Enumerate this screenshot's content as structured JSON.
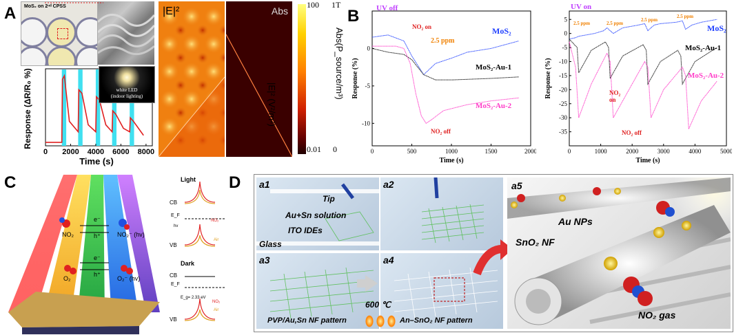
{
  "panel_labels": {
    "a": "A",
    "b": "B",
    "c": "C",
    "d": "D"
  },
  "panelA": {
    "photo_caption": "MoS₂ on 2ⁿᵈ CPSS",
    "led_label_1": "white LED",
    "led_label_2": "(indoor lighting)",
    "field_label": "|E|²",
    "abs_label": "Abs",
    "colorbar_top_left": "100",
    "colorbar_bottom_left": "0.01",
    "colorbar_top_right": "1T",
    "colorbar_bottom_right": "0",
    "colorbar_axis_left": "|E|² (V²/m²)",
    "colorbar_axis_right": "Abs(P_source/m³)",
    "colors": {
      "trace": "#e02020",
      "led_band": "#40e0f0",
      "abs_bg": "#3a0000"
    }
  },
  "panelB": {
    "left_title": "UV off",
    "right_title": "UV on",
    "no2_on": "NO₂ on",
    "no2_off": "NO₂ off",
    "ppm": "2.5 ppm",
    "series_mos2": "MoS₂",
    "series_au1": "MoS₂-Au-1",
    "series_au2": "MoS₂-Au-2",
    "colors": {
      "mos2": "#2040ff",
      "au1": "#111111",
      "au2": "#ff3cc8",
      "title": "#c040ff",
      "ppm": "#f08000",
      "no2": "#e02020"
    }
  },
  "panelC": {
    "e_minus": "e⁻",
    "h_plus": "h⁺",
    "no2": "NO₂",
    "no2_minus_hv": "NO₂⁻ (hv)",
    "o2": "O₂",
    "o2_minus_hv": "O₂⁻ (hv)",
    "light": "Light",
    "dark": "Dark",
    "cb": "CB",
    "vb": "VB",
    "ef": "E_F",
    "hv": "hv",
    "no2_curve": "NO₂",
    "air_curve": "Air",
    "eg": "E_g= 2.33 eV"
  },
  "panelD": {
    "a1": "a1",
    "a2": "a2",
    "a3": "a3",
    "a4": "a4",
    "a5": "a5",
    "tip": "Tip",
    "solution": "Au+Sn solution",
    "ito": "ITO IDEs",
    "glass": "Glass",
    "temp": "600 ℃",
    "pattern1": "PVP/Au,Sn NF pattern",
    "pattern2": "An–SnO₂ NF pattern",
    "au_nps": "Au NPs",
    "sno2_nf": "SnO₂ NF",
    "no2_gas": "NO₂ gas"
  },
  "chart_data": [
    {
      "type": "line",
      "id": "A-response",
      "xlabel": "Time (s)",
      "ylabel": "Response (ΔR/R₀ %)",
      "xlim": [
        0,
        8500
      ],
      "xticks": [
        0,
        2000,
        4000,
        6000,
        8000
      ],
      "series": [
        {
          "name": "Response",
          "x": [
            0,
            1300,
            1350,
            1500,
            1900,
            2600,
            2650,
            2900,
            3400,
            4000,
            4050,
            4300,
            4800,
            5300,
            5350,
            5600,
            6200,
            6700,
            6750,
            7000,
            7800
          ],
          "y": [
            0,
            0,
            18,
            19,
            6,
            3,
            15,
            14,
            5,
            3,
            13,
            12,
            5,
            3,
            9,
            8,
            4,
            3,
            7,
            6,
            2
          ]
        }
      ]
    },
    {
      "type": "line",
      "id": "B-uv-off",
      "title": "UV off",
      "xlabel": "Time (s)",
      "ylabel": "Response (%)",
      "xlim": [
        0,
        2000
      ],
      "ylim": [
        -13,
        5
      ],
      "xticks": [
        0,
        500,
        1000,
        1500,
        2000
      ],
      "yticks": [
        -10,
        -5,
        0
      ],
      "series": [
        {
          "name": "MoS₂",
          "x": [
            0,
            200,
            400,
            500,
            650,
            800,
            1000,
            1200,
            1500,
            1850
          ],
          "y": [
            1.5,
            1.8,
            1,
            -1,
            -3.5,
            -2,
            -1.3,
            -0.5,
            0,
            1
          ]
        },
        {
          "name": "MoS₂-Au-1",
          "x": [
            0,
            200,
            400,
            500,
            650,
            800,
            1000,
            1500,
            1850
          ],
          "y": [
            0,
            -0.5,
            -0.8,
            -1.5,
            -3.5,
            -4.2,
            -4.2,
            -4,
            -3.8
          ]
        },
        {
          "name": "MoS₂-Au-2",
          "x": [
            0,
            300,
            400,
            480,
            550,
            620,
            680,
            750,
            900,
            1200,
            1500,
            1850
          ],
          "y": [
            0.3,
            0.3,
            0,
            -2,
            -6,
            -9,
            -10,
            -9.5,
            -8.3,
            -7.5,
            -7,
            -6.6
          ]
        }
      ]
    },
    {
      "type": "line",
      "id": "B-uv-on",
      "title": "UV on",
      "xlabel": "Time (s)",
      "ylabel": "Response (%)",
      "xlim": [
        0,
        5000
      ],
      "ylim": [
        -40,
        8
      ],
      "xticks": [
        0,
        1000,
        2000,
        3000,
        4000,
        5000
      ],
      "yticks": [
        -35,
        -30,
        -25,
        -20,
        -15,
        -10,
        -5,
        0,
        5
      ],
      "series": [
        {
          "name": "MoS₂",
          "x": [
            0,
            200,
            300,
            800,
            1100,
            1200,
            1400,
            1700,
            2200,
            2400,
            2500,
            2700,
            2900,
            3400,
            3600,
            3700,
            3900,
            4200,
            4700
          ],
          "y": [
            -2,
            -1.5,
            -1,
            0,
            1,
            2,
            0,
            2,
            3,
            3.5,
            1,
            3,
            3.5,
            4,
            4.5,
            1.5,
            3,
            4,
            5
          ]
        },
        {
          "name": "MoS₂-Au-1",
          "x": [
            0,
            250,
            300,
            700,
            1150,
            1250,
            1300,
            1700,
            2350,
            2450,
            2500,
            2900,
            3450,
            3550,
            3600,
            4000,
            4700
          ],
          "y": [
            -2,
            -5,
            -14,
            -6,
            -3,
            -5,
            -16,
            -8,
            -4,
            -6,
            -18,
            -10,
            -6,
            -8,
            -18,
            -10,
            -5
          ]
        },
        {
          "name": "MoS₂-Au-2",
          "x": [
            0,
            200,
            300,
            700,
            1200,
            1300,
            1400,
            1900,
            2400,
            2500,
            2600,
            3000,
            3600,
            3700,
            3800,
            4200,
            4700
          ],
          "y": [
            -3,
            -12,
            -30,
            -18,
            -7,
            -10,
            -30,
            -20,
            -10,
            -12,
            -30,
            -20,
            -12,
            -15,
            -34,
            -24,
            -17
          ]
        }
      ]
    }
  ]
}
